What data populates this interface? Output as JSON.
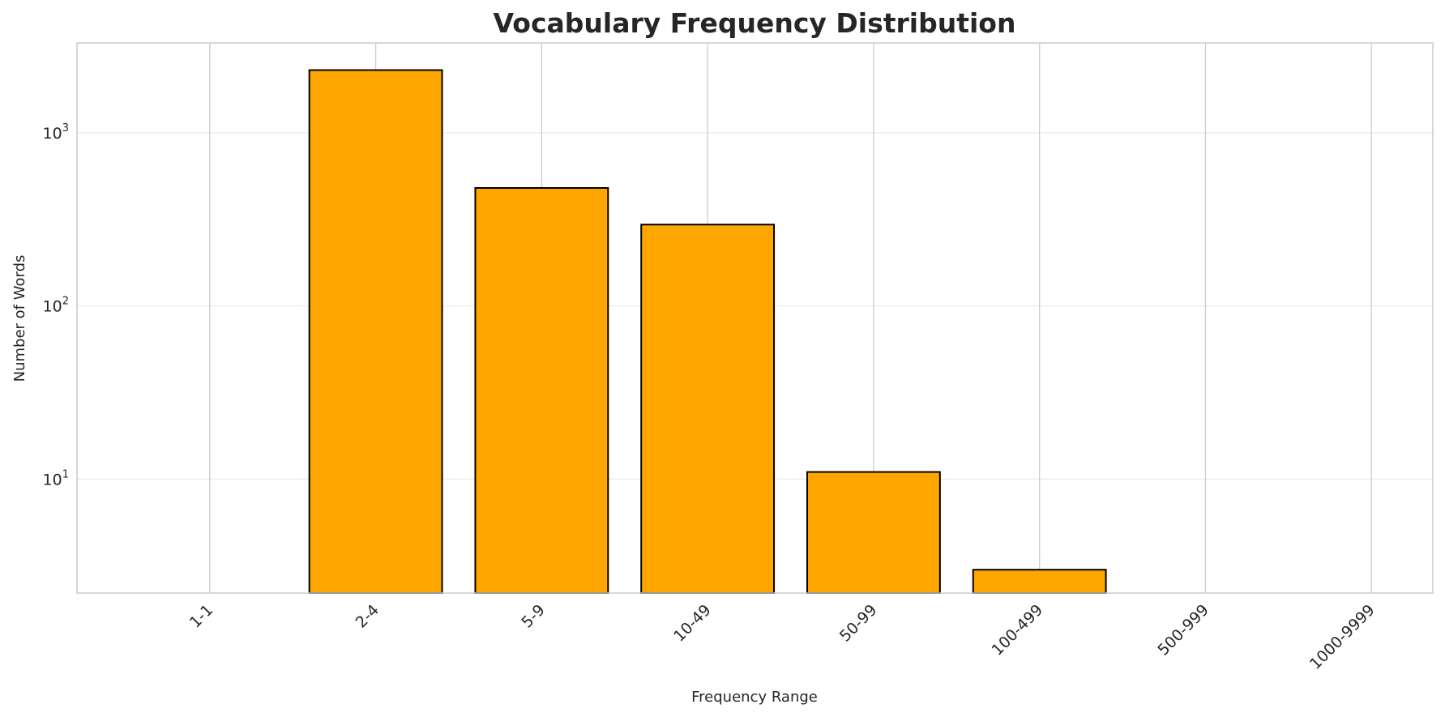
{
  "chart_data": {
    "type": "bar",
    "title": "Vocabulary Frequency Distribution",
    "xlabel": "Frequency Range",
    "ylabel": "Number of Words",
    "yscale": "log",
    "ylim": [
      2.2,
      3300
    ],
    "categories": [
      "1-1",
      "2-4",
      "5-9",
      "10-49",
      "50-99",
      "100-499",
      "500-999",
      "1000-9999"
    ],
    "values": [
      0,
      2300,
      480,
      295,
      11,
      3,
      0,
      0
    ],
    "yticks": [
      {
        "base": "10",
        "exp": "1",
        "value": 10
      },
      {
        "base": "10",
        "exp": "2",
        "value": 100
      },
      {
        "base": "10",
        "exp": "3",
        "value": 1000
      }
    ],
    "bar_color": "#FFA500",
    "bar_edge_color": "#000000",
    "grid": true,
    "legend": "none"
  }
}
